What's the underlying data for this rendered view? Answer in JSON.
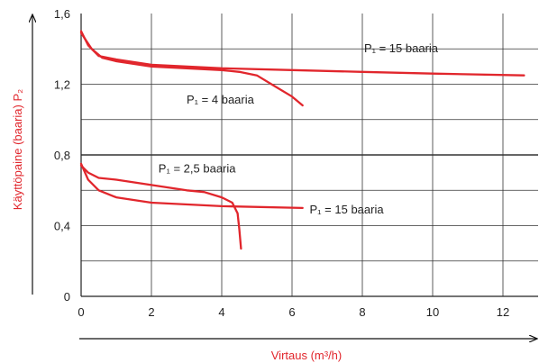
{
  "chart_data": {
    "type": "line",
    "xlabel": "Virtaus (m³/h)",
    "ylabel": "Käyttöpaine (baaria) P₂",
    "xlim": [
      0,
      13
    ],
    "ylim": [
      0,
      1.6
    ],
    "xticks": [
      0,
      2,
      4,
      6,
      8,
      10,
      12
    ],
    "yticks": [
      0,
      0.4,
      0.8,
      1.2,
      1.6
    ],
    "xtick_labels": [
      "0",
      "2",
      "4",
      "6",
      "8",
      "10",
      "12"
    ],
    "ytick_labels": [
      "0",
      "0,4",
      "0,8",
      "1,2",
      "1,6"
    ],
    "grid": true,
    "line_color": "#e1262c",
    "series": [
      {
        "name": "P₁ = 15 baaria",
        "points": [
          [
            0,
            1.5
          ],
          [
            0.2,
            1.42
          ],
          [
            0.5,
            1.36
          ],
          [
            1,
            1.34
          ],
          [
            2,
            1.31
          ],
          [
            4,
            1.29
          ],
          [
            6,
            1.28
          ],
          [
            8,
            1.27
          ],
          [
            10,
            1.26
          ],
          [
            12.6,
            1.25
          ]
        ]
      },
      {
        "name": "P₁ = 4 baaria",
        "points": [
          [
            0,
            1.49
          ],
          [
            0.3,
            1.4
          ],
          [
            0.6,
            1.35
          ],
          [
            1,
            1.33
          ],
          [
            2,
            1.3
          ],
          [
            3,
            1.29
          ],
          [
            4,
            1.28
          ],
          [
            4.5,
            1.27
          ],
          [
            5,
            1.25
          ],
          [
            5.5,
            1.19
          ],
          [
            6,
            1.13
          ],
          [
            6.3,
            1.08
          ]
        ]
      },
      {
        "name": "P₁ = 2,5 baaria",
        "points": [
          [
            0,
            0.74
          ],
          [
            0.2,
            0.7
          ],
          [
            0.5,
            0.67
          ],
          [
            1,
            0.66
          ],
          [
            2,
            0.63
          ],
          [
            3,
            0.6
          ],
          [
            3.5,
            0.59
          ],
          [
            4,
            0.56
          ],
          [
            4.3,
            0.53
          ],
          [
            4.45,
            0.47
          ],
          [
            4.5,
            0.38
          ],
          [
            4.55,
            0.27
          ]
        ]
      },
      {
        "name": "P₁ = 15 baaria",
        "points": [
          [
            0,
            0.75
          ],
          [
            0.2,
            0.66
          ],
          [
            0.5,
            0.6
          ],
          [
            1,
            0.56
          ],
          [
            2,
            0.53
          ],
          [
            4,
            0.51
          ],
          [
            6.3,
            0.5
          ]
        ]
      }
    ],
    "annotations": [
      {
        "text": "P₁ = 15 baaria",
        "x": 8.05,
        "y": 1.38
      },
      {
        "text": "P₁ = 4 baaria",
        "x": 3.0,
        "y": 1.09
      },
      {
        "text": "P₁ = 2,5 baaria",
        "x": 2.2,
        "y": 0.7
      },
      {
        "text": "P₁ = 15 baaria",
        "x": 6.5,
        "y": 0.47
      }
    ]
  }
}
